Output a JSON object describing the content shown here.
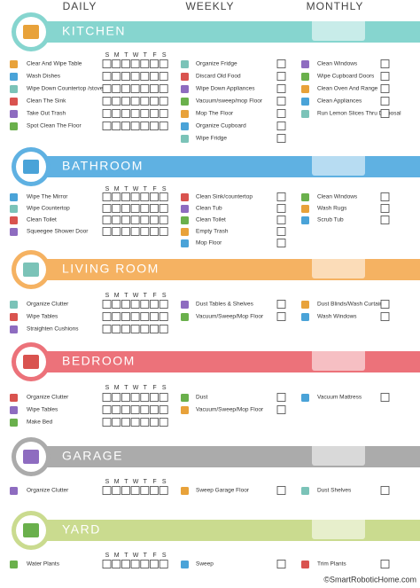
{
  "headers": {
    "daily": "DAILY",
    "weekly": "WEEKLY",
    "monthly": "MONTHLY"
  },
  "days": [
    "S",
    "M",
    "T",
    "W",
    "T",
    "F",
    "S"
  ],
  "sections": [
    {
      "title": "KITCHEN",
      "daily": [
        "Clear And Wipe Table",
        "Wash Dishes",
        "Wipe Down Countertop /stove",
        "Clean The Sink",
        "Take Out Trash",
        "Spot Clean The Floor"
      ],
      "weekly": [
        "Organize Fridge",
        "Discard Old Food",
        "Wipe Down Appliances",
        "Vacuum/sweep/mop Floor",
        "Mop The Floor",
        "Organize Cupboard",
        "Wipe Fridge"
      ],
      "monthly": [
        "Clean Windows",
        "Wipe Cupboard Doors",
        "Clean Oven And Range",
        "Clean Appliances",
        "Run Lemon Slices Thru Disposal"
      ]
    },
    {
      "title": "BATHROOM",
      "daily": [
        "Wipe The Mirror",
        "Wipe Countertop",
        "Clean Toilet",
        "Squeegee Shower Door"
      ],
      "weekly": [
        "Clean Sink/countertop",
        "Clean Tub",
        "Clean Toilet",
        "Empty Trash",
        "Mop Floor"
      ],
      "monthly": [
        "Clean Windows",
        "Wash Rugs",
        "Scrub Tub"
      ]
    },
    {
      "title": "LIVING ROOM",
      "daily": [
        "Organize Clutter",
        "Wipe Tables",
        "Straighten Cushions"
      ],
      "weekly": [
        "Dust Tables & Shelves",
        "Vacuum/Sweep/Mop Floor"
      ],
      "monthly": [
        "Dust Blinds/Wash Curtains",
        "Wash Windows"
      ]
    },
    {
      "title": "BEDROOM",
      "daily": [
        "Organize Clutter",
        "Wipe Tables",
        "Make Bed"
      ],
      "weekly": [
        "Dust",
        "Vacuum/Sweep/Mop Floor"
      ],
      "monthly": [
        "Vacuum Mattress"
      ]
    },
    {
      "title": "GARAGE",
      "daily": [
        "Organize Clutter"
      ],
      "weekly": [
        "Sweep Garage Floor"
      ],
      "monthly": [
        "Dust Shelves"
      ]
    },
    {
      "title": "YARD",
      "daily": [
        "Water Plants"
      ],
      "weekly": [
        "Sweep"
      ],
      "monthly": [
        "Trim Plants"
      ]
    }
  ],
  "footer": "©SmartRoboticHome.com"
}
